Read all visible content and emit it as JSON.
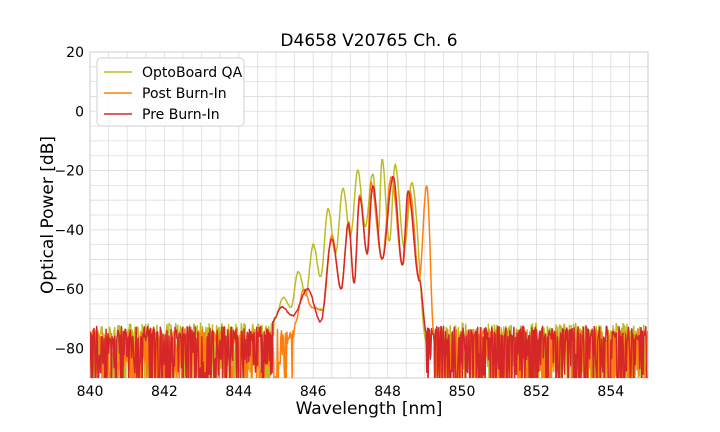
{
  "chart_data": {
    "type": "line",
    "title": "D4658 V20765 Ch. 6",
    "xlabel": "Wavelength [nm]",
    "ylabel": "Optical Power [dB]",
    "xlim": [
      840,
      855
    ],
    "ylim": [
      -90,
      20
    ],
    "x_ticks": [
      840,
      842,
      844,
      846,
      848,
      850,
      852,
      854
    ],
    "x_tick_labels": [
      "840",
      "842",
      "844",
      "846",
      "848",
      "850",
      "852",
      "854"
    ],
    "y_ticks": [
      20,
      0,
      -20,
      -40,
      -60,
      -80
    ],
    "y_tick_labels": [
      "20",
      "0",
      "−20",
      "−40",
      "−60",
      "−80"
    ],
    "grid": true,
    "legend_position": "top-left",
    "series": [
      {
        "name": "OptoBoard QA",
        "color": "#bcbd22",
        "noise_floor": -74,
        "peaks": [
          {
            "x": 845.2,
            "y": -63
          },
          {
            "x": 845.6,
            "y": -54
          },
          {
            "x": 846.0,
            "y": -45
          },
          {
            "x": 846.4,
            "y": -33
          },
          {
            "x": 846.8,
            "y": -26
          },
          {
            "x": 847.2,
            "y": -20
          },
          {
            "x": 847.6,
            "y": -21
          },
          {
            "x": 847.85,
            "y": -16
          },
          {
            "x": 848.2,
            "y": -18
          },
          {
            "x": 848.65,
            "y": -24
          },
          {
            "x": 849.05,
            "y": -78
          }
        ],
        "valleys": [
          {
            "x": 845.4,
            "y": -66
          },
          {
            "x": 845.8,
            "y": -62
          },
          {
            "x": 846.2,
            "y": -56
          },
          {
            "x": 846.6,
            "y": -48
          },
          {
            "x": 847.0,
            "y": -42
          },
          {
            "x": 847.4,
            "y": -39
          },
          {
            "x": 847.75,
            "y": -41
          },
          {
            "x": 848.05,
            "y": -44
          },
          {
            "x": 848.45,
            "y": -46
          }
        ]
      },
      {
        "name": "Post Burn-In",
        "color": "#ff7f0e",
        "noise_floor": -76,
        "peaks": [
          {
            "x": 845.75,
            "y": -60
          },
          {
            "x": 846.5,
            "y": -42
          },
          {
            "x": 846.95,
            "y": -37
          },
          {
            "x": 847.25,
            "y": -28
          },
          {
            "x": 847.55,
            "y": -24
          },
          {
            "x": 848.1,
            "y": -22
          },
          {
            "x": 848.6,
            "y": -27
          },
          {
            "x": 849.05,
            "y": -25
          }
        ],
        "valleys": [
          {
            "x": 845.95,
            "y": -66
          },
          {
            "x": 846.25,
            "y": -67
          },
          {
            "x": 846.75,
            "y": -60
          },
          {
            "x": 847.1,
            "y": -58
          },
          {
            "x": 847.45,
            "y": -48
          },
          {
            "x": 847.85,
            "y": -50
          },
          {
            "x": 848.4,
            "y": -52
          },
          {
            "x": 848.85,
            "y": -56
          }
        ]
      },
      {
        "name": "Pre Burn-In",
        "color": "#d62728",
        "noise_floor": -75,
        "peaks": [
          {
            "x": 845.15,
            "y": -66
          },
          {
            "x": 845.85,
            "y": -60
          },
          {
            "x": 846.5,
            "y": -43
          },
          {
            "x": 846.95,
            "y": -38
          },
          {
            "x": 847.25,
            "y": -29
          },
          {
            "x": 847.6,
            "y": -25
          },
          {
            "x": 848.15,
            "y": -22
          },
          {
            "x": 848.55,
            "y": -27
          }
        ],
        "valleys": [
          {
            "x": 845.45,
            "y": -69
          },
          {
            "x": 846.2,
            "y": -71
          },
          {
            "x": 846.75,
            "y": -60
          },
          {
            "x": 847.1,
            "y": -58
          },
          {
            "x": 847.45,
            "y": -48
          },
          {
            "x": 847.85,
            "y": -50
          },
          {
            "x": 848.4,
            "y": -52
          },
          {
            "x": 848.85,
            "y": -57
          }
        ]
      }
    ]
  }
}
